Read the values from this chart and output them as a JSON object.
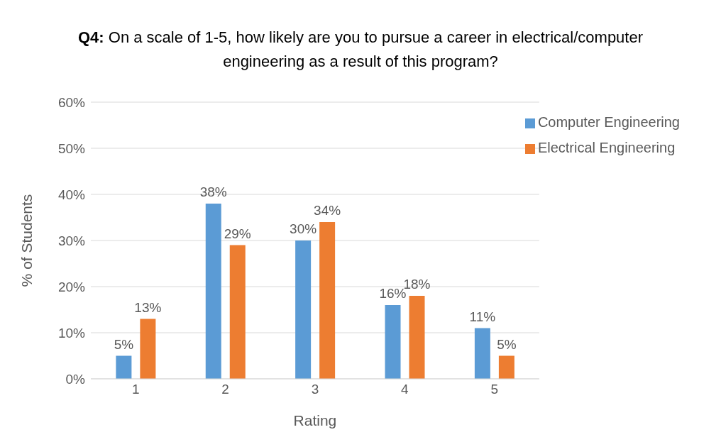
{
  "chart_data": {
    "type": "bar",
    "title": "Q4: On a scale of 1-5, how likely are you to pursue a career in electrical/computer engineering as a result of this program?",
    "xlabel": "Rating",
    "ylabel": "% of Students",
    "categories": [
      "1",
      "2",
      "3",
      "4",
      "5"
    ],
    "series": [
      {
        "name": "Computer Engineering",
        "color": "#5b9bd5",
        "values": [
          5,
          38,
          30,
          16,
          11
        ],
        "value_labels": [
          "5%",
          "38%",
          "30%",
          "16%",
          "11%"
        ]
      },
      {
        "name": "Electrical Engineering",
        "color": "#ed7d31",
        "values": [
          13,
          29,
          34,
          18,
          5
        ],
        "value_labels": [
          "13%",
          "29%",
          "34%",
          "18%",
          "5%"
        ]
      }
    ],
    "ylim": [
      0,
      60
    ],
    "yticks": [
      {
        "value": 0,
        "label": "0%"
      },
      {
        "value": 10,
        "label": "10%"
      },
      {
        "value": 20,
        "label": "20%"
      },
      {
        "value": 30,
        "label": "30%"
      },
      {
        "value": 40,
        "label": "40%"
      },
      {
        "value": 50,
        "label": "50%"
      },
      {
        "value": 60,
        "label": "60%"
      }
    ],
    "grid": "y",
    "legend": "top right"
  }
}
